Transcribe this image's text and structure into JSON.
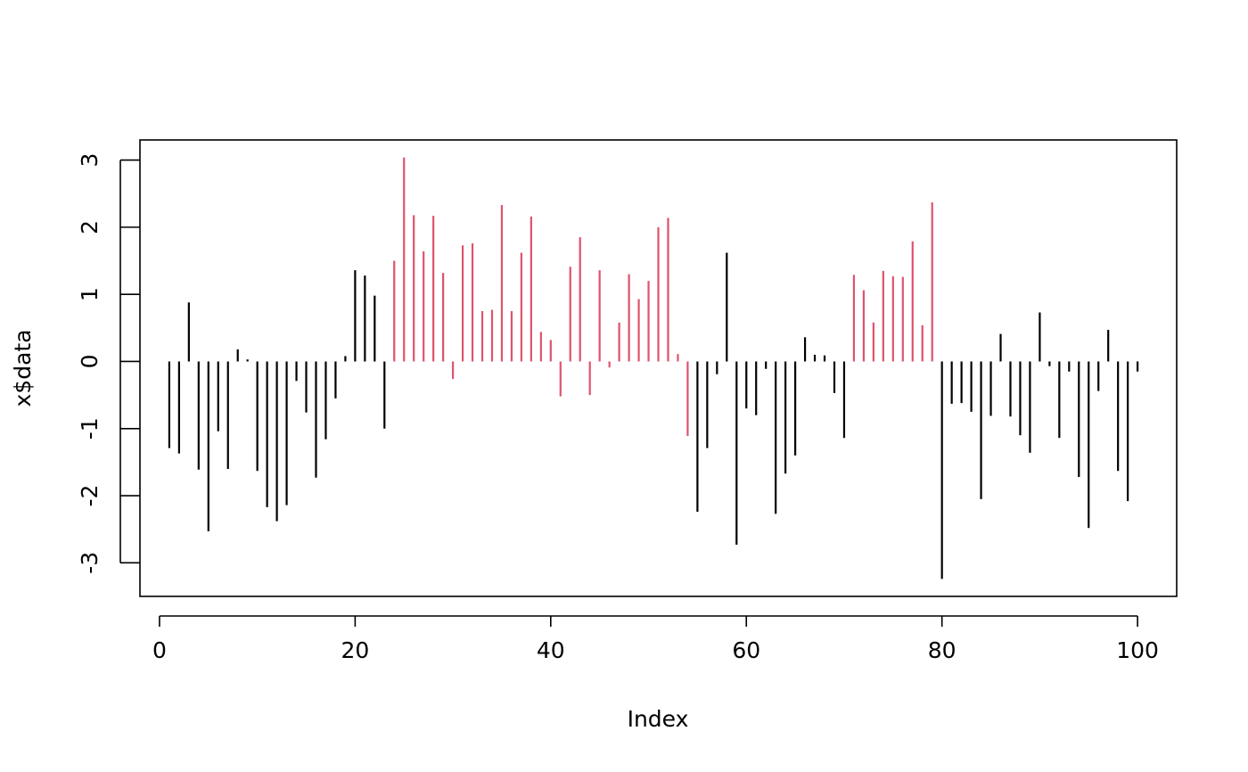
{
  "chart_data": {
    "type": "bar",
    "title": "",
    "xlabel": "Index",
    "ylabel": "x$data",
    "xlim": [
      -2,
      104
    ],
    "ylim": [
      -3.5,
      3.3
    ],
    "x_ticks": [
      0,
      20,
      40,
      60,
      80,
      100
    ],
    "y_ticks": [
      -3,
      -2,
      -1,
      0,
      1,
      2,
      3
    ],
    "grid": false,
    "colors": {
      "segment_1": "#000000",
      "segment_2": "#DF536B"
    },
    "series": [
      {
        "color": "#000000",
        "x": [
          1,
          2,
          3,
          4,
          5,
          6,
          7,
          8,
          9,
          10,
          11,
          12,
          13,
          14,
          15,
          16,
          17,
          18,
          19,
          20,
          21,
          22,
          23
        ],
        "values": [
          -1.29,
          -1.37,
          0.88,
          -1.61,
          -2.53,
          -1.04,
          -1.6,
          0.18,
          0.03,
          -1.63,
          -2.17,
          -2.38,
          -2.14,
          -0.29,
          -0.76,
          -1.73,
          -1.16,
          -0.55,
          0.08,
          1.36,
          1.28,
          0.98,
          -1.0
        ]
      },
      {
        "color": "#DF536B",
        "x": [
          24,
          25,
          26,
          27,
          28,
          29,
          30,
          31,
          32,
          33,
          34,
          35,
          36,
          37,
          38,
          39,
          40,
          41,
          42,
          43,
          44,
          45,
          46,
          47,
          48,
          49,
          50,
          51,
          52,
          53,
          54
        ],
        "values": [
          1.5,
          3.04,
          2.18,
          1.64,
          2.17,
          1.32,
          -0.26,
          1.73,
          1.76,
          0.75,
          0.77,
          2.33,
          0.75,
          1.62,
          2.16,
          0.44,
          0.32,
          -0.52,
          1.41,
          1.85,
          -0.5,
          1.36,
          -0.09,
          0.58,
          1.3,
          0.93,
          1.2,
          2.0,
          2.14,
          0.11,
          -1.11
        ]
      },
      {
        "color": "#000000",
        "x": [
          55,
          56,
          57,
          58
        ],
        "values": [
          -2.24,
          -1.29,
          -0.19,
          1.62
        ]
      },
      {
        "color": "#000000",
        "x": [
          59,
          60,
          61,
          62,
          63,
          64,
          65,
          66,
          67,
          68,
          69,
          70
        ],
        "values": [
          -2.73,
          -0.7,
          -0.8,
          -0.11,
          -2.27,
          -1.67,
          -1.4,
          0.36,
          0.1,
          0.09,
          -0.47,
          -1.14
        ]
      },
      {
        "color": "#DF536B",
        "x": [
          71,
          72,
          73,
          74,
          75,
          76,
          77,
          78,
          79
        ],
        "values": [
          1.29,
          1.06,
          0.58,
          1.35,
          1.27,
          1.26,
          1.79,
          0.54,
          2.37
        ]
      },
      {
        "color": "#000000",
        "x": [
          80,
          81,
          82,
          83,
          84,
          85,
          86,
          87,
          88,
          89,
          90,
          91,
          92,
          93,
          94,
          95,
          96,
          97,
          98,
          99,
          100
        ],
        "values": [
          -3.24,
          -0.63,
          -0.62,
          -0.75,
          -2.05,
          -0.81,
          0.41,
          -0.82,
          -1.1,
          -1.36,
          0.73,
          -0.07,
          -1.14,
          -0.15,
          -1.72,
          -2.48,
          -0.44,
          0.47,
          -1.63,
          -2.08,
          -0.15
        ]
      }
    ]
  }
}
